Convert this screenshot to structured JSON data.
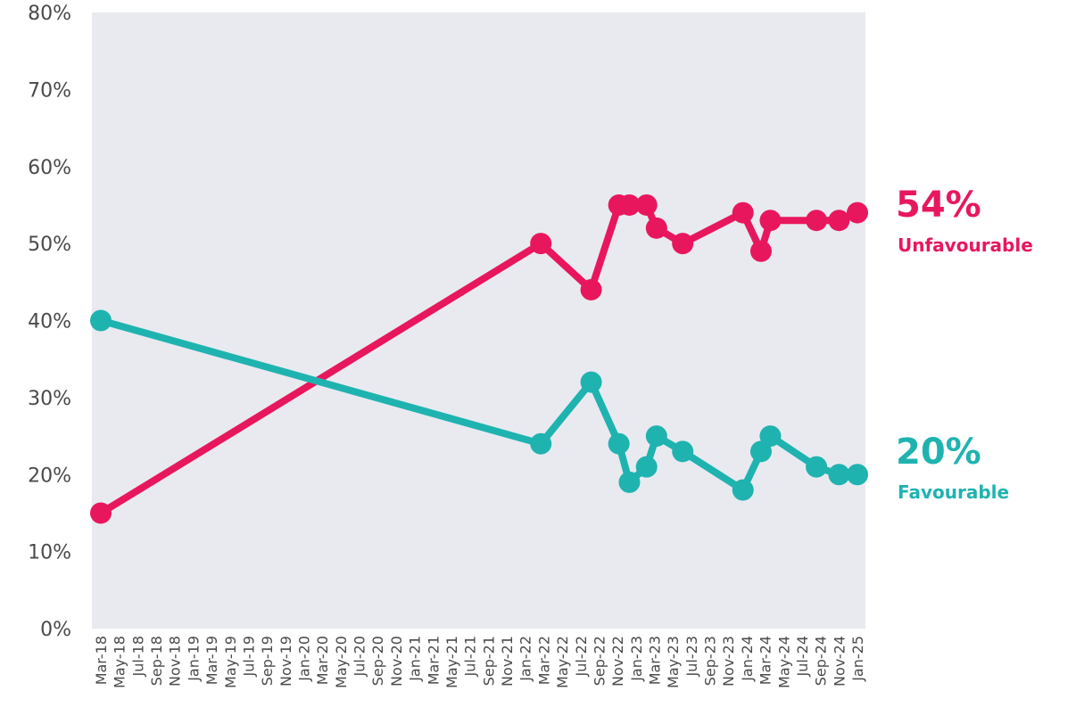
{
  "chart_data": {
    "type": "line",
    "title": "",
    "xlabel": "",
    "ylabel": "",
    "ylim": [
      0,
      80
    ],
    "yticks": [
      "0%",
      "10%",
      "20%",
      "30%",
      "40%",
      "50%",
      "60%",
      "70%",
      "80%"
    ],
    "grid": false,
    "x": [
      "Mar-18",
      "May-18",
      "Jul-18",
      "Sep-18",
      "Nov-18",
      "Jan-19",
      "Mar-19",
      "May-19",
      "Jul-19",
      "Sep-19",
      "Nov-19",
      "Jan-20",
      "Mar-20",
      "May-20",
      "Jul-20",
      "Sep-20",
      "Nov-20",
      "Jan-21",
      "Mar-21",
      "May-21",
      "Jul-21",
      "Sep-21",
      "Nov-21",
      "Jan-22",
      "Mar-22",
      "May-22",
      "Jul-22",
      "Sep-22",
      "Nov-22",
      "Jan-23",
      "Mar-23",
      "May-23",
      "Jul-23",
      "Sep-23",
      "Nov-23",
      "Jan-24",
      "Mar-24",
      "May-24",
      "Jul-24",
      "Sep-24",
      "Nov-24",
      "Jan-25"
    ],
    "series": [
      {
        "name": "Unfavourable",
        "color": "#e8175d",
        "end_value_label": "54%",
        "points": [
          {
            "x": "2018-03-01",
            "y": 15
          },
          {
            "x": "2022-03-01",
            "y": 50
          },
          {
            "x": "2022-08-15",
            "y": 44
          },
          {
            "x": "2022-11-15",
            "y": 55
          },
          {
            "x": "2022-12-20",
            "y": 55
          },
          {
            "x": "2023-02-15",
            "y": 55
          },
          {
            "x": "2023-03-20",
            "y": 52
          },
          {
            "x": "2023-06-15",
            "y": 50
          },
          {
            "x": "2024-01-01",
            "y": 54
          },
          {
            "x": "2024-03-01",
            "y": 49
          },
          {
            "x": "2024-04-01",
            "y": 53
          },
          {
            "x": "2024-09-01",
            "y": 53
          },
          {
            "x": "2024-11-15",
            "y": 53
          },
          {
            "x": "2025-01-15",
            "y": 54
          }
        ]
      },
      {
        "name": "Favourable",
        "color": "#1fb3b0",
        "end_value_label": "20%",
        "points": [
          {
            "x": "2018-03-01",
            "y": 40
          },
          {
            "x": "2022-03-01",
            "y": 24
          },
          {
            "x": "2022-08-15",
            "y": 32
          },
          {
            "x": "2022-11-15",
            "y": 24
          },
          {
            "x": "2022-12-20",
            "y": 19
          },
          {
            "x": "2023-02-15",
            "y": 21
          },
          {
            "x": "2023-03-20",
            "y": 25
          },
          {
            "x": "2023-06-15",
            "y": 23
          },
          {
            "x": "2024-01-01",
            "y": 18
          },
          {
            "x": "2024-03-01",
            "y": 23
          },
          {
            "x": "2024-04-01",
            "y": 25
          },
          {
            "x": "2024-09-01",
            "y": 21
          },
          {
            "x": "2024-11-15",
            "y": 20
          },
          {
            "x": "2025-01-15",
            "y": 20
          }
        ]
      }
    ],
    "plot_background": "#e8eaf0"
  }
}
